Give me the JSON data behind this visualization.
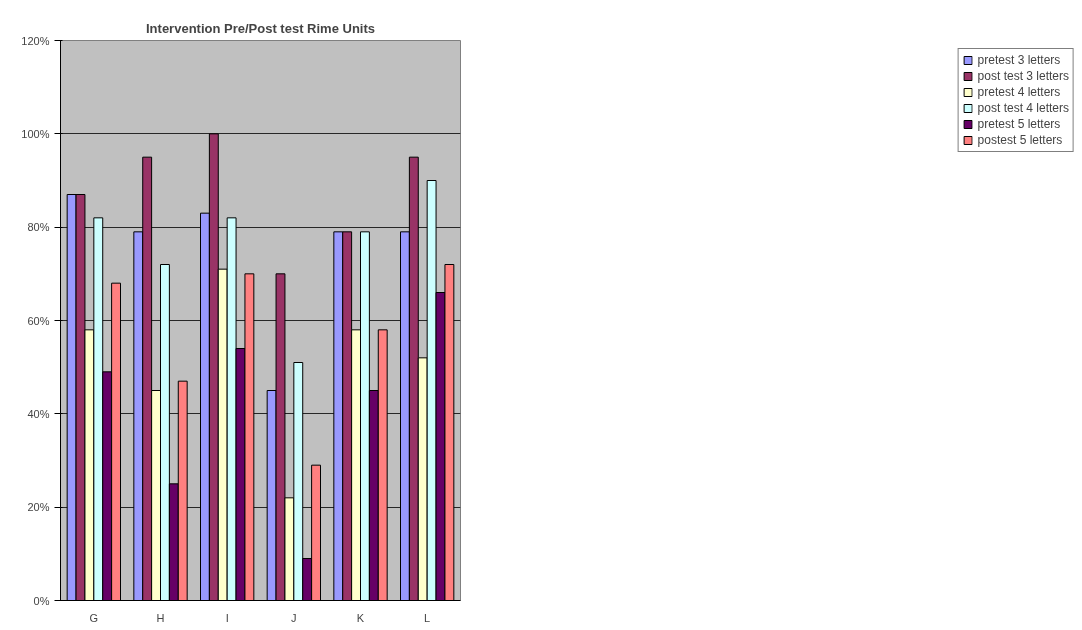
{
  "chart_data": {
    "type": "bar",
    "title": "Intervention Pre/Post test Rime Units",
    "categories": [
      "G",
      "H",
      "I",
      "J",
      "K",
      "L"
    ],
    "series": [
      {
        "name": "pretest 3 letters",
        "color": "#9999ff",
        "values": [
          87,
          79,
          83,
          45,
          79,
          79
        ]
      },
      {
        "name": "post test 3 letters",
        "color": "#993366",
        "values": [
          87,
          95,
          100,
          70,
          79,
          95
        ]
      },
      {
        "name": "pretest 4 letters",
        "color": "#ffffcc",
        "values": [
          58,
          45,
          71,
          22,
          58,
          52
        ]
      },
      {
        "name": "post test 4 letters",
        "color": "#ccffff",
        "values": [
          82,
          72,
          82,
          51,
          79,
          90
        ]
      },
      {
        "name": "pretest 5 letters",
        "color": "#660066",
        "values": [
          49,
          25,
          54,
          9,
          45,
          66
        ]
      },
      {
        "name": "postest 5 letters",
        "color": "#ff8080",
        "values": [
          68,
          47,
          70,
          29,
          58,
          72
        ]
      }
    ],
    "ylim": [
      0,
      120
    ],
    "yticks": [
      {
        "value": 0,
        "label": "0%"
      },
      {
        "value": 20,
        "label": "20%"
      },
      {
        "value": 40,
        "label": "40%"
      },
      {
        "value": 60,
        "label": "60%"
      },
      {
        "value": 80,
        "label": "80%"
      },
      {
        "value": 100,
        "label": "100%"
      },
      {
        "value": 120,
        "label": "120%"
      }
    ],
    "grid": "y",
    "legend": "right"
  }
}
